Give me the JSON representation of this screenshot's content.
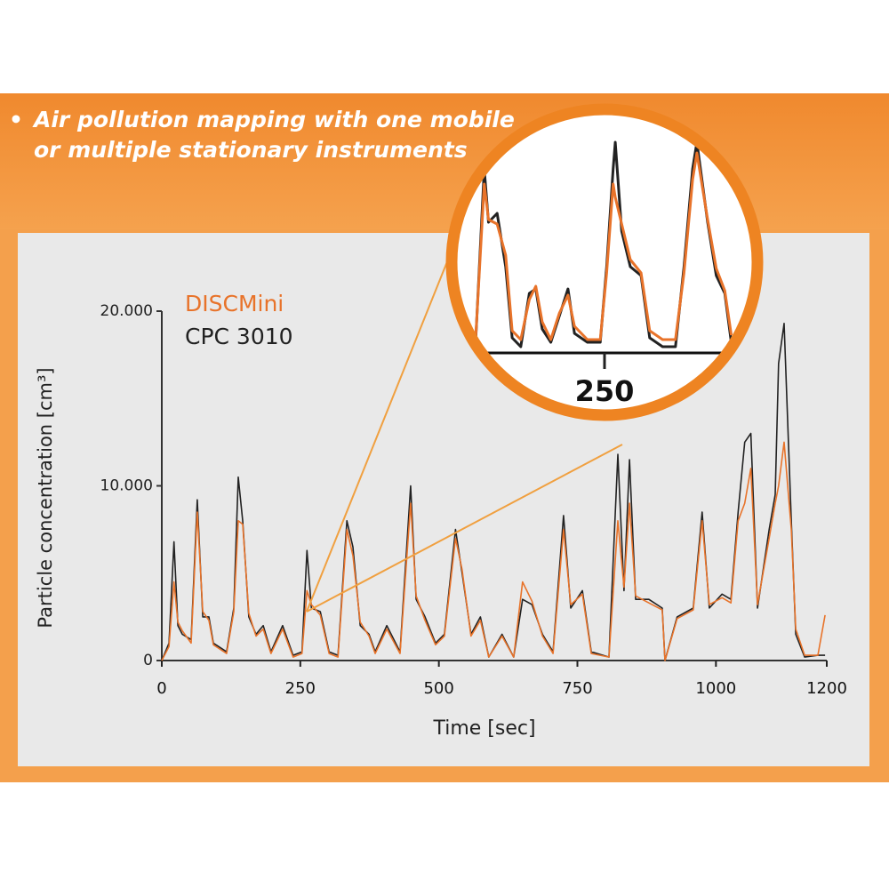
{
  "bullet": {
    "lines": [
      "Air pollution mapping with one mobile",
      "or multiple stationary instruments"
    ]
  },
  "chart_data": [
    {
      "type": "line",
      "y_label": "Particle concentration [cm³]",
      "x_label": "Time [sec]",
      "xlim": [
        0,
        1200
      ],
      "xticks": [
        0,
        250,
        500,
        750,
        1000,
        1200
      ],
      "ylim": [
        0,
        20000
      ],
      "yticks": [
        0,
        {
          "value": 10000,
          "label": "10.000"
        },
        {
          "value": 20000,
          "label": "20.000"
        }
      ],
      "x": [
        0,
        13,
        22,
        29,
        37,
        53,
        64,
        74,
        85,
        93,
        117,
        130,
        138,
        146,
        157,
        170,
        183,
        197,
        218,
        237,
        253,
        262,
        270,
        286,
        302,
        318,
        334,
        345,
        358,
        374,
        385,
        406,
        430,
        449,
        459,
        475,
        494,
        510,
        530,
        542,
        558,
        575,
        590,
        614,
        635,
        651,
        668,
        687,
        706,
        725,
        738,
        759,
        775,
        807,
        823,
        834,
        844,
        855,
        879,
        903,
        908,
        930,
        959,
        975,
        988,
        1011,
        1027,
        1040,
        1052,
        1063,
        1075,
        1096,
        1107,
        1113,
        1123,
        1136,
        1144,
        1160,
        1184,
        1197
      ],
      "series": [
        {
          "name": "DISCMini",
          "color": "#e8732a",
          "values": [
            0,
            800,
            4500,
            2200,
            1700,
            1000,
            8500,
            2800,
            2300,
            900,
            400,
            2800,
            8000,
            7800,
            2700,
            1400,
            1800,
            400,
            1800,
            200,
            400,
            4000,
            3200,
            2600,
            400,
            200,
            7500,
            6000,
            2200,
            1400,
            400,
            1800,
            400,
            9000,
            3700,
            2300,
            900,
            1400,
            7000,
            5200,
            1400,
            2300,
            200,
            1400,
            200,
            4500,
            3400,
            1400,
            400,
            7500,
            3200,
            3800,
            400,
            200,
            8000,
            4200,
            9000,
            3700,
            3300,
            2900,
            0,
            2400,
            2900,
            8000,
            3200,
            3600,
            3300,
            8000,
            9000,
            11000,
            3200,
            7000,
            9000,
            10000,
            12500,
            7500,
            1800,
            300,
            300,
            2600
          ]
        },
        {
          "name": "CPC 3010",
          "color": "#222222",
          "values": [
            0,
            1000,
            6800,
            2000,
            1500,
            1200,
            9200,
            2500,
            2500,
            1000,
            500,
            3000,
            10500,
            8000,
            2500,
            1500,
            2000,
            500,
            2000,
            300,
            500,
            6300,
            3000,
            2800,
            500,
            300,
            8000,
            6500,
            2000,
            1500,
            500,
            2000,
            500,
            10000,
            3500,
            2500,
            1000,
            1500,
            7500,
            5000,
            1500,
            2500,
            200,
            1500,
            200,
            3500,
            3200,
            1500,
            500,
            8300,
            3000,
            4000,
            500,
            200,
            11800,
            4000,
            11500,
            3500,
            3500,
            3000,
            0,
            2500,
            3000,
            8500,
            3000,
            3800,
            3500,
            8500,
            12500,
            13000,
            3000,
            7500,
            9500,
            17000,
            19300,
            8000,
            1500,
            200,
            300,
            300
          ]
        }
      ]
    },
    {
      "type": "line",
      "xlim": [
        190,
        310
      ],
      "xticks": [
        250
      ],
      "ylim": [
        0,
        5000
      ],
      "x": [
        190,
        194,
        196,
        200,
        204,
        207,
        211,
        215,
        218,
        221,
        225,
        229,
        233,
        236,
        242,
        248,
        251,
        254,
        255,
        258,
        262,
        267,
        271,
        277,
        283,
        287,
        291,
        293,
        298,
        302,
        306,
        309
      ],
      "series": [
        {
          "name": "DISCMini",
          "color": "#e8732a",
          "values": [
            300,
            3800,
            3000,
            2900,
            2200,
            500,
            300,
            1200,
            1500,
            700,
            300,
            900,
            1300,
            600,
            300,
            300,
            1800,
            3800,
            3500,
            2900,
            2100,
            1800,
            500,
            300,
            300,
            1800,
            3900,
            4500,
            3000,
            1900,
            1400,
            400
          ]
        },
        {
          "name": "CPC 3010",
          "color": "#222222",
          "values": [
            240,
            4140,
            2940,
            3140,
            1940,
            340,
            140,
            1340,
            1440,
            540,
            240,
            840,
            1440,
            440,
            240,
            240,
            1940,
            4140,
            4740,
            2740,
            1940,
            1740,
            340,
            140,
            140,
            1940,
            4140,
            4740,
            2940,
            1740,
            1340,
            240
          ]
        }
      ]
    }
  ]
}
